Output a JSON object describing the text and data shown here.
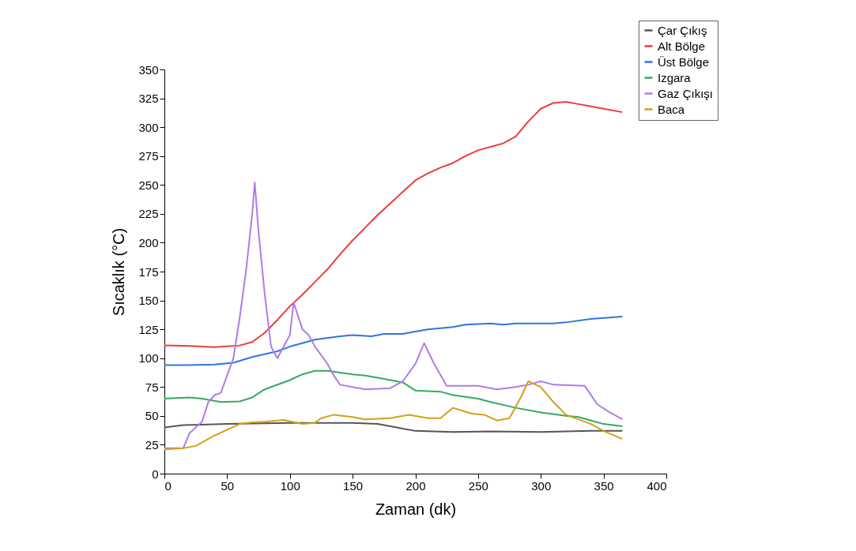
{
  "chart_data": {
    "type": "line",
    "xlabel": "Zaman (dk)",
    "ylabel": "Sıcaklık (°C)",
    "xlim": [
      0,
      400
    ],
    "xticks": [
      0,
      50,
      100,
      150,
      200,
      250,
      300,
      350,
      400
    ],
    "ylim": [
      0,
      350
    ],
    "yticks": [
      0,
      25,
      50,
      75,
      100,
      125,
      150,
      175,
      200,
      225,
      250,
      275,
      300,
      325,
      350
    ],
    "grid": false,
    "legend": "top right",
    "marker": "none",
    "line_style": "solid",
    "series": [
      {
        "name": "Çar Çıkış",
        "color": "#555555",
        "x": [
          0,
          15,
          50,
          100,
          150,
          170,
          200,
          230,
          260,
          300,
          340,
          365
        ],
        "values": [
          40,
          42,
          43,
          44,
          44,
          43,
          37,
          36,
          36.5,
          36,
          37,
          37
        ]
      },
      {
        "name": "Alt Bölge",
        "color": "#ee3b3b",
        "x": [
          0,
          20,
          40,
          60,
          70,
          80,
          90,
          100,
          110,
          120,
          130,
          140,
          150,
          160,
          170,
          180,
          190,
          200,
          210,
          220,
          230,
          240,
          250,
          260,
          270,
          280,
          290,
          300,
          310,
          320,
          330,
          340,
          350,
          365
        ],
        "values": [
          111,
          110.5,
          109.5,
          111,
          114,
          122,
          133,
          145,
          155,
          166,
          177,
          190,
          202,
          213,
          224,
          234,
          244,
          254,
          260,
          265,
          269,
          275,
          280,
          283,
          286,
          292,
          305,
          316,
          321,
          322,
          320,
          318,
          316,
          313
        ]
      },
      {
        "name": "Üst Bölge",
        "color": "#2f74e6",
        "x": [
          0,
          20,
          40,
          55,
          70,
          90,
          100,
          120,
          140,
          150,
          165,
          175,
          190,
          200,
          210,
          230,
          240,
          260,
          270,
          280,
          310,
          320,
          340,
          365
        ],
        "values": [
          94,
          94,
          94.5,
          96,
          101,
          106,
          110,
          116,
          119,
          120,
          119,
          121,
          121,
          123,
          125,
          127,
          129,
          130,
          129,
          130,
          130,
          131,
          134,
          136
        ]
      },
      {
        "name": "Izgara",
        "color": "#33aa66",
        "x": [
          0,
          20,
          30,
          45,
          60,
          70,
          80,
          100,
          110,
          120,
          130,
          150,
          160,
          170,
          190,
          200,
          220,
          230,
          250,
          260,
          280,
          300,
          320,
          330,
          340,
          350,
          365
        ],
        "values": [
          65,
          66,
          65,
          62,
          62.5,
          66,
          73,
          81,
          86,
          89,
          89,
          86,
          85,
          83,
          79,
          72,
          71,
          68,
          65,
          62,
          57,
          53,
          50,
          49,
          46,
          43,
          41
        ]
      },
      {
        "name": "Gaz Çıkışı",
        "color": "#b07be6",
        "x": [
          0,
          15,
          20,
          30,
          35,
          40,
          45,
          55,
          60,
          65,
          70,
          72,
          75,
          80,
          85,
          90,
          95,
          100,
          103,
          110,
          115,
          120,
          130,
          135,
          140,
          160,
          180,
          190,
          200,
          207,
          215,
          225,
          240,
          250,
          265,
          280,
          290,
          300,
          310,
          335,
          345,
          355,
          365
        ],
        "values": [
          22,
          22,
          35,
          45,
          62,
          68,
          70,
          100,
          135,
          175,
          225,
          252,
          210,
          155,
          110,
          100,
          110,
          120,
          148,
          125,
          120,
          110,
          95,
          85,
          77,
          73,
          74,
          80,
          95,
          113,
          95,
          76,
          76,
          76,
          73,
          75,
          77,
          80,
          77,
          76,
          60,
          53,
          47
        ]
      },
      {
        "name": "Baca",
        "color": "#d4a017",
        "x": [
          0,
          15,
          25,
          40,
          50,
          60,
          70,
          80,
          95,
          110,
          120,
          125,
          135,
          150,
          160,
          180,
          195,
          210,
          220,
          230,
          245,
          255,
          265,
          275,
          285,
          290,
          300,
          310,
          320,
          340,
          350,
          365
        ],
        "values": [
          21,
          22,
          24,
          33,
          38,
          43,
          44.5,
          45,
          46.5,
          43,
          44,
          48,
          51,
          49,
          47,
          48,
          51,
          48,
          48,
          57,
          52,
          51,
          46,
          48,
          68,
          80,
          75,
          62,
          51,
          43,
          37,
          30
        ]
      }
    ]
  }
}
